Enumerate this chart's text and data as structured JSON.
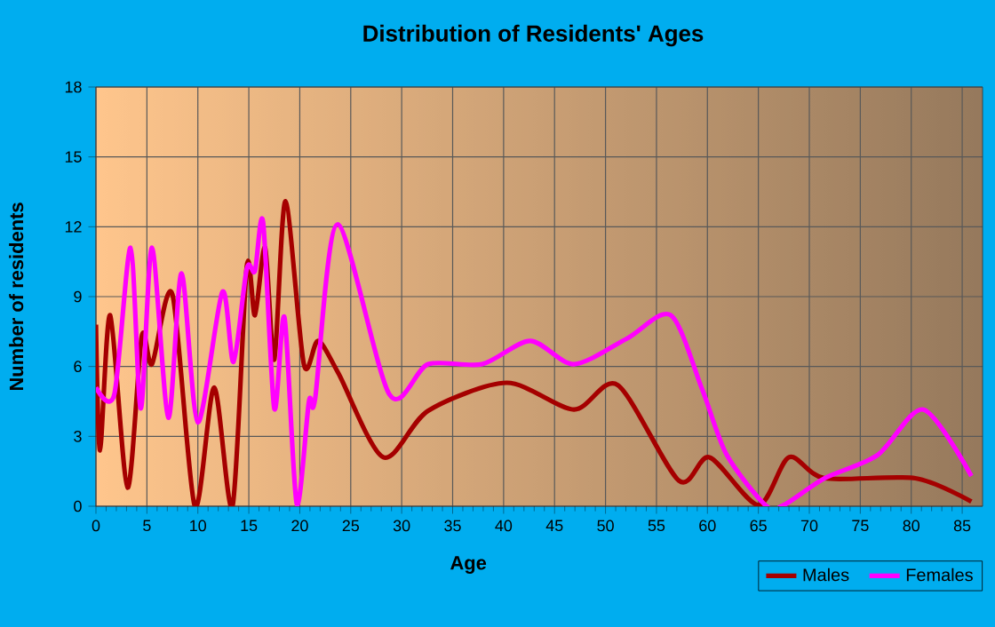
{
  "chart_data": {
    "type": "line",
    "title": "Distribution of Residents' Ages",
    "xlabel": "Age",
    "ylabel": "Number of residents",
    "xlim": [
      0,
      87
    ],
    "ylim": [
      0,
      18
    ],
    "xticks": [
      0,
      5,
      10,
      15,
      20,
      25,
      30,
      35,
      40,
      45,
      50,
      55,
      60,
      65,
      70,
      75,
      80,
      85
    ],
    "yticks": [
      0,
      3,
      6,
      9,
      12,
      15,
      18
    ],
    "grid": true,
    "legend": "bottom right",
    "marker": "none",
    "line_style": "solid",
    "series": [
      {
        "name": "Males",
        "color": "#a50000",
        "x": [
          0,
          0.4,
          1.4,
          3.1,
          4.5,
          5.5,
          7.5,
          9.7,
          11.6,
          13.4,
          14.8,
          15.6,
          16.6,
          17.5,
          18.6,
          20.4,
          21.8,
          23.8,
          28.2,
          32.6,
          40.3,
          46.9,
          51.2,
          57.2,
          60.2,
          65,
          68,
          71.5,
          80.4,
          85.9
        ],
        "values": [
          7.8,
          2.4,
          8.2,
          0.8,
          7.3,
          6.1,
          9.1,
          0,
          5.1,
          0,
          10.3,
          8.2,
          11.1,
          6.3,
          13.1,
          6.1,
          7.1,
          5.7,
          2.1,
          4.1,
          5.3,
          4.15,
          5.2,
          1.1,
          2.1,
          0.05,
          2.1,
          1.2,
          1.2,
          0.2
        ]
      },
      {
        "name": "Females",
        "color": "#ff00ff",
        "x": [
          0,
          1.8,
          3.4,
          4.4,
          5.5,
          7.1,
          8.4,
          10,
          12.4,
          13.5,
          14.8,
          15.6,
          16.4,
          17.5,
          18.5,
          19.7,
          20.9,
          21.5,
          23.7,
          28.8,
          32.6,
          37.9,
          42.6,
          46.9,
          52.1,
          56.4,
          59.5,
          61.9,
          65.8,
          67.5,
          71.5,
          76.7,
          81.2,
          85.9
        ],
        "values": [
          5.1,
          4.8,
          11.1,
          4.2,
          11.1,
          3.8,
          10,
          3.6,
          9.2,
          6.2,
          10.2,
          10.1,
          12.2,
          4.2,
          8.1,
          0.1,
          4.5,
          4.6,
          12.1,
          4.8,
          6.1,
          6.1,
          7.1,
          6.1,
          7.2,
          8.2,
          5.0,
          2.2,
          0,
          0.05,
          1.2,
          2.2,
          4.15,
          1.3
        ]
      }
    ]
  }
}
